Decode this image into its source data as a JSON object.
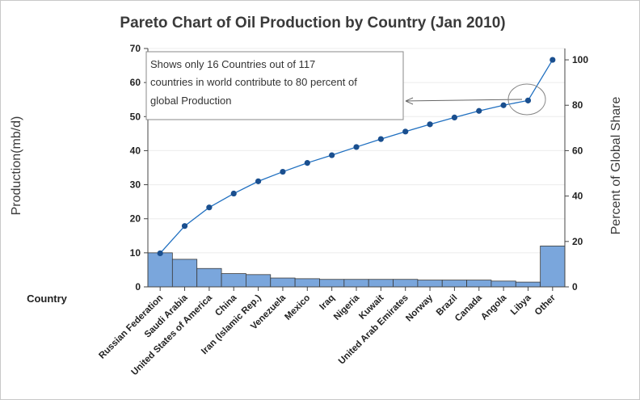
{
  "chart_data": {
    "type": "bar",
    "title": "Pareto Chart of Oil Production by Country (Jan 2010)",
    "ylabel": "Production(mb/d)",
    "y2label": "Percent of Global Share",
    "xlabel": "Country",
    "ylim": [
      0,
      70
    ],
    "y2lim": [
      0,
      105
    ],
    "yticks": [
      0,
      10,
      20,
      30,
      40,
      50,
      60,
      70
    ],
    "y2ticks": [
      0,
      20,
      40,
      60,
      80,
      100
    ],
    "grid": true,
    "categories": [
      "Russian Federation",
      "Saudi Arabia",
      "United States of America",
      "China",
      "Iran (Islamic Rep.)",
      "Venezuela",
      "Mexico",
      "Iraq",
      "Nigeria",
      "Kuwait",
      "United Arab Emirates",
      "Norway",
      "Brazil",
      "Canada",
      "Angola",
      "Libya",
      "Other"
    ],
    "series": [
      {
        "type": "bar",
        "axis": "left",
        "values": [
          10.0,
          8.1,
          5.4,
          3.9,
          3.6,
          2.6,
          2.4,
          2.2,
          2.2,
          2.2,
          2.2,
          2.0,
          2.0,
          2.0,
          1.7,
          1.4,
          12.0
        ]
      },
      {
        "type": "line",
        "axis": "right",
        "values": [
          14.8,
          26.8,
          35.0,
          41.1,
          46.5,
          50.7,
          54.6,
          58.0,
          61.6,
          65.1,
          68.4,
          71.6,
          74.6,
          77.5,
          80.0,
          82.1,
          100.0
        ]
      }
    ],
    "annotation": "Shows only 16 Countries out of 117 countries in world contribute to 80 percent of global Production",
    "annotation_lines": [
      "Shows only 16 Countries out of 117",
      "countries in world contribute to 80 percent of",
      "global Production"
    ],
    "colors": {
      "bar_fill": "#7aa6dc",
      "bar_stroke": "#3a3a3a",
      "line": "#1f6fc0",
      "marker": "#1a4f8f",
      "grid": "#ececec",
      "note_border": "#888888",
      "arrow": "#666666"
    }
  }
}
